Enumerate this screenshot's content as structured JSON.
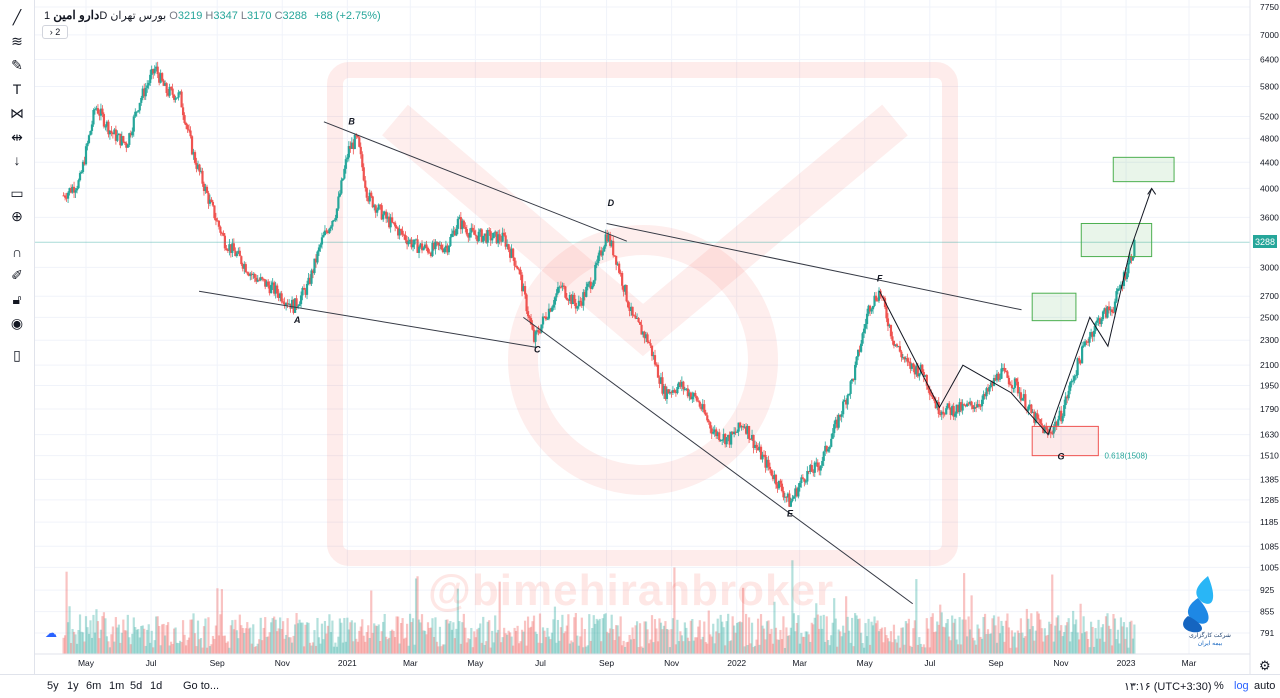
{
  "header": {
    "name": "دارو امین",
    "interval": "1D",
    "exchange": "بورس تهران",
    "open_label": "O",
    "open": "3219",
    "high_label": "H",
    "high": "3347",
    "low_label": "L",
    "low": "3170",
    "close_label": "C",
    "close": "3288",
    "change": "+88 (+2.75%)",
    "collapse": "2"
  },
  "colors": {
    "up": "#26a69a",
    "down": "#ef5350",
    "box": "#4caf50"
  },
  "toolbar": [
    "trend-line-icon",
    "fib-icon",
    "brush-icon",
    "text-icon",
    "pattern-icon",
    "measure-icon",
    "arrow-down-icon",
    "ruler-icon",
    "zoom-icon",
    "magnet-icon",
    "lock-draw-icon",
    "lock-icon",
    "eye-icon",
    "trash-icon"
  ],
  "bottom": {
    "ranges": [
      "5y",
      "1y",
      "6m",
      "1m",
      "5d",
      "1d"
    ],
    "goto": "Go to...",
    "timezone": "۱۳:۱۶ (UTC+3:30)",
    "pct": "%",
    "log": "log",
    "auto": "auto"
  },
  "watermark": "@bimehiranbroker",
  "logo": {
    "line1": "شرکت کارگزاری",
    "line2": "بیمه ایران"
  },
  "chart_data": {
    "type": "candlestick",
    "scale": "log",
    "ylim": [
      700,
      7750
    ],
    "y_ticks": [
      7750,
      7000,
      6400,
      5800,
      5200,
      4800,
      4400,
      4000,
      3600,
      3000,
      2700,
      2500,
      2300,
      2100,
      1950,
      1790,
      1630,
      1510,
      1385,
      1285,
      1185,
      1085,
      1005,
      925,
      855,
      791
    ],
    "x_ticks": [
      "May",
      "Jul",
      "Sep",
      "Nov",
      "2021",
      "Mar",
      "May",
      "Jul",
      "Sep",
      "Nov",
      "2022",
      "Mar",
      "May",
      "Jul",
      "Sep",
      "Nov",
      "2023",
      "Mar"
    ],
    "last_price": "3288",
    "price_path": [
      [
        "2020-04-10",
        3900
      ],
      [
        "2020-04-25",
        4100
      ],
      [
        "2020-05-10",
        5400
      ],
      [
        "2020-05-25",
        4900
      ],
      [
        "2020-06-08",
        4700
      ],
      [
        "2020-06-20",
        5500
      ],
      [
        "2020-07-05",
        6200
      ],
      [
        "2020-07-15",
        5700
      ],
      [
        "2020-07-28",
        5600
      ],
      [
        "2020-08-10",
        4500
      ],
      [
        "2020-08-25",
        3800
      ],
      [
        "2020-09-08",
        3300
      ],
      [
        "2020-09-22",
        3100
      ],
      [
        "2020-10-05",
        2900
      ],
      [
        "2020-10-20",
        2800
      ],
      [
        "2020-11-01",
        2700
      ],
      [
        "2020-11-12",
        2600
      ],
      [
        "2020-11-25",
        2800
      ],
      [
        "2020-12-08",
        3300
      ],
      [
        "2020-12-22",
        3700
      ],
      [
        "2021-01-02",
        4600
      ],
      [
        "2021-01-10",
        4800
      ],
      [
        "2021-01-20",
        3900
      ],
      [
        "2021-02-05",
        3600
      ],
      [
        "2021-02-20",
        3400
      ],
      [
        "2021-03-05",
        3250
      ],
      [
        "2021-03-20",
        3200
      ],
      [
        "2021-04-05",
        3250
      ],
      [
        "2021-04-15",
        3550
      ],
      [
        "2021-04-28",
        3380
      ],
      [
        "2021-05-10",
        3360
      ],
      [
        "2021-05-28",
        3330
      ],
      [
        "2021-06-10",
        3000
      ],
      [
        "2021-06-25",
        2300
      ],
      [
        "2021-07-05",
        2500
      ],
      [
        "2021-07-20",
        2800
      ],
      [
        "2021-08-05",
        2600
      ],
      [
        "2021-08-20",
        2900
      ],
      [
        "2021-09-01",
        3400
      ],
      [
        "2021-09-10",
        3100
      ],
      [
        "2021-09-25",
        2500
      ],
      [
        "2021-10-10",
        2300
      ],
      [
        "2021-10-25",
        1900
      ],
      [
        "2021-11-10",
        1950
      ],
      [
        "2021-11-25",
        1850
      ],
      [
        "2021-12-10",
        1650
      ],
      [
        "2021-12-25",
        1600
      ],
      [
        "2022-01-08",
        1700
      ],
      [
        "2022-01-20",
        1550
      ],
      [
        "2022-02-05",
        1400
      ],
      [
        "2022-02-20",
        1270
      ],
      [
        "2022-03-05",
        1400
      ],
      [
        "2022-03-20",
        1460
      ],
      [
        "2022-04-05",
        1700
      ],
      [
        "2022-04-20",
        2000
      ],
      [
        "2022-05-05",
        2600
      ],
      [
        "2022-05-15",
        2750
      ],
      [
        "2022-05-28",
        2300
      ],
      [
        "2022-06-10",
        2100
      ],
      [
        "2022-06-25",
        2050
      ],
      [
        "2022-07-08",
        1800
      ],
      [
        "2022-07-20",
        1780
      ],
      [
        "2022-08-05",
        1800
      ],
      [
        "2022-08-20",
        1850
      ],
      [
        "2022-09-05",
        2050
      ],
      [
        "2022-09-20",
        1950
      ],
      [
        "2022-10-05",
        1750
      ],
      [
        "2022-10-20",
        1630
      ],
      [
        "2022-11-01",
        1750
      ],
      [
        "2022-11-12",
        2000
      ],
      [
        "2022-11-25",
        2300
      ],
      [
        "2022-12-08",
        2500
      ],
      [
        "2022-12-20",
        2600
      ],
      [
        "2023-01-02",
        3000
      ],
      [
        "2023-01-10",
        3288
      ]
    ],
    "wave_labels": [
      {
        "label": "A",
        "date": "2020-11-15",
        "price": 2450
      },
      {
        "label": "B",
        "date": "2021-01-05",
        "price": 5050
      },
      {
        "label": "C",
        "date": "2021-06-28",
        "price": 2200
      },
      {
        "label": "D",
        "date": "2021-09-05",
        "price": 3750
      },
      {
        "label": "E",
        "date": "2022-02-20",
        "price": 1210
      },
      {
        "label": "F",
        "date": "2022-05-15",
        "price": 2850
      },
      {
        "label": "G",
        "date": "2022-11-01",
        "price": 1490
      }
    ],
    "fib_label": "0.618(1508)",
    "trendlines": [
      {
        "from": [
          "2020-08-15",
          2750
        ],
        "to": [
          "2021-06-28",
          2240
        ]
      },
      {
        "from": [
          "2020-12-10",
          5100
        ],
        "to": [
          "2021-09-20",
          3300
        ]
      },
      {
        "from": [
          "2021-09-01",
          3520
        ],
        "to": [
          "2022-09-25",
          2570
        ]
      },
      {
        "from": [
          "2021-06-15",
          2500
        ],
        "to": [
          "2022-06-15",
          880
        ]
      }
    ],
    "boxes": [
      {
        "from": [
          "2022-10-05",
          1680
        ],
        "to": [
          "2022-12-06",
          1510
        ],
        "color": "#ef5350"
      },
      {
        "from": [
          "2022-10-05",
          2730
        ],
        "to": [
          "2022-11-15",
          2470
        ],
        "color": "#4caf50"
      },
      {
        "from": [
          "2022-11-20",
          3520
        ],
        "to": [
          "2023-01-25",
          3120
        ],
        "color": "#4caf50"
      },
      {
        "from": [
          "2022-12-20",
          4480
        ],
        "to": [
          "2023-02-15",
          4100
        ],
        "color": "#4caf50"
      }
    ]
  }
}
